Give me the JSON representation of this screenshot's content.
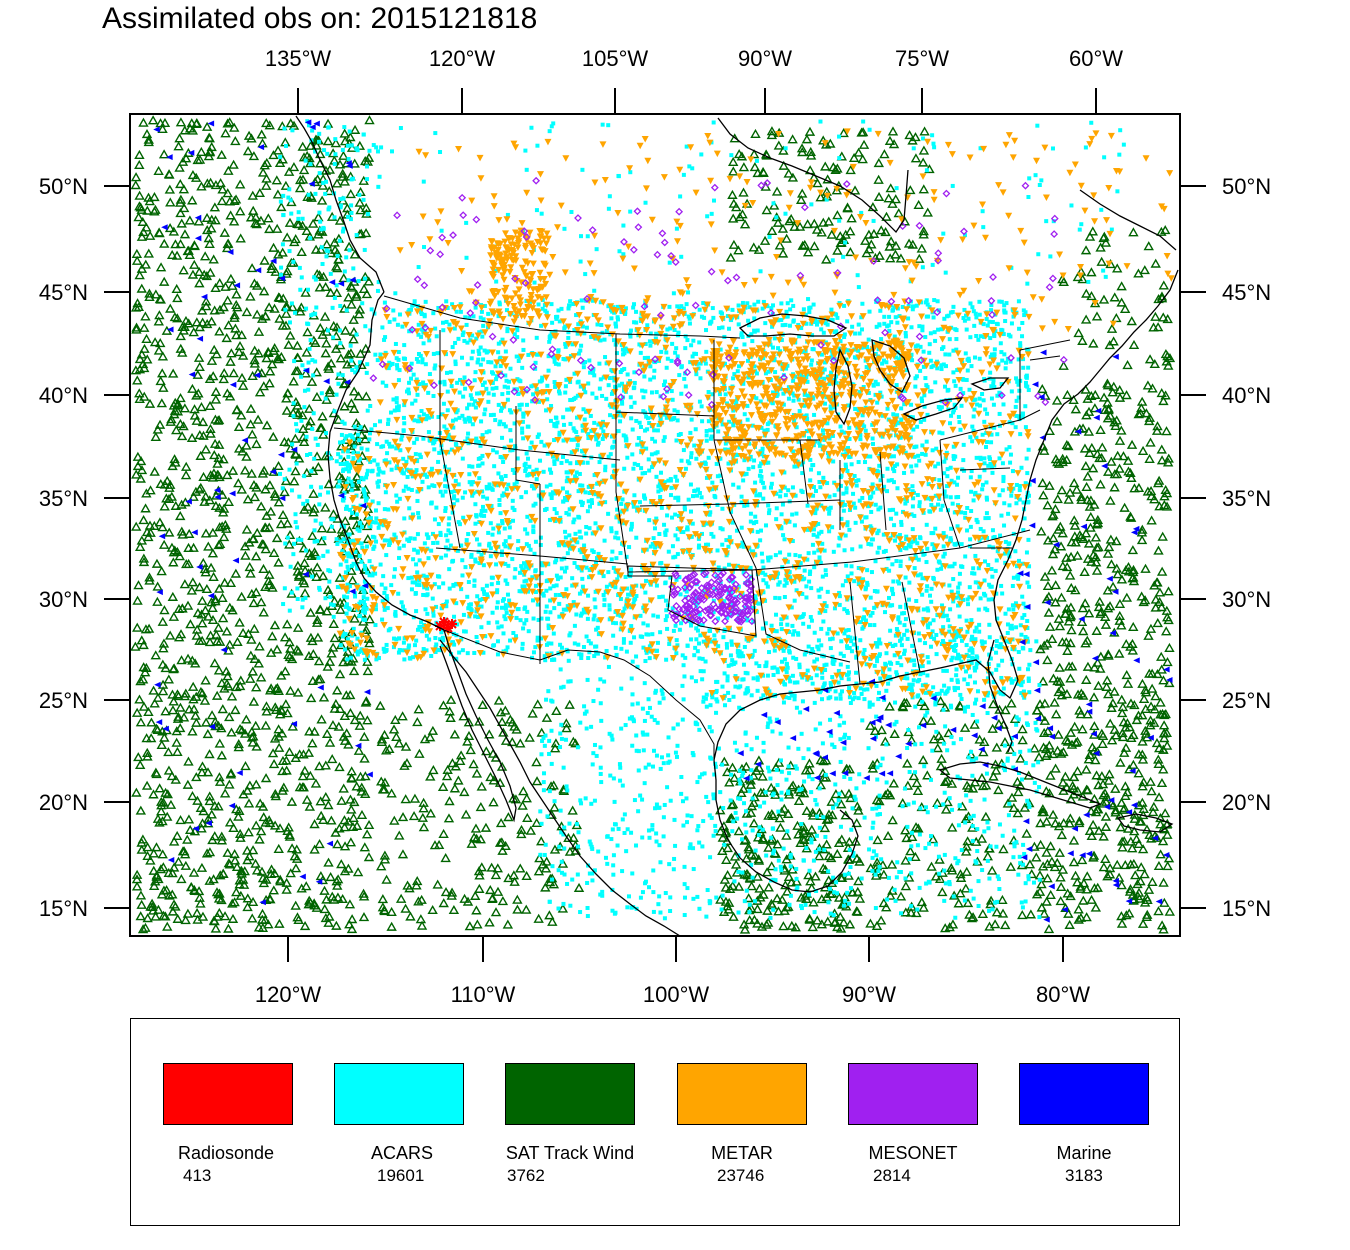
{
  "title": "Assimilated obs on: 2015121818",
  "map": {
    "top_lon_labels": [
      "135°W",
      "120°W",
      "105°W",
      "90°W",
      "75°W",
      "60°W"
    ],
    "bottom_lon_labels": [
      "120°W",
      "110°W",
      "100°W",
      "90°W",
      "80°W"
    ],
    "lat_labels": [
      "50°N",
      "45°N",
      "40°N",
      "35°N",
      "30°N",
      "25°N",
      "20°N",
      "15°N"
    ]
  },
  "legend": [
    {
      "name": "Radiosonde",
      "count": "413",
      "color": "#ff0000"
    },
    {
      "name": "ACARS",
      "count": "19601",
      "color": "#00ffff"
    },
    {
      "name": "SAT Track Wind",
      "count": "3762",
      "color": "#006400"
    },
    {
      "name": "METAR",
      "count": "23746",
      "color": "#ffa500"
    },
    {
      "name": "MESONET",
      "count": "2814",
      "color": "#a020f0"
    },
    {
      "name": "Marine",
      "count": "3183",
      "color": "#0000ff"
    }
  ]
}
